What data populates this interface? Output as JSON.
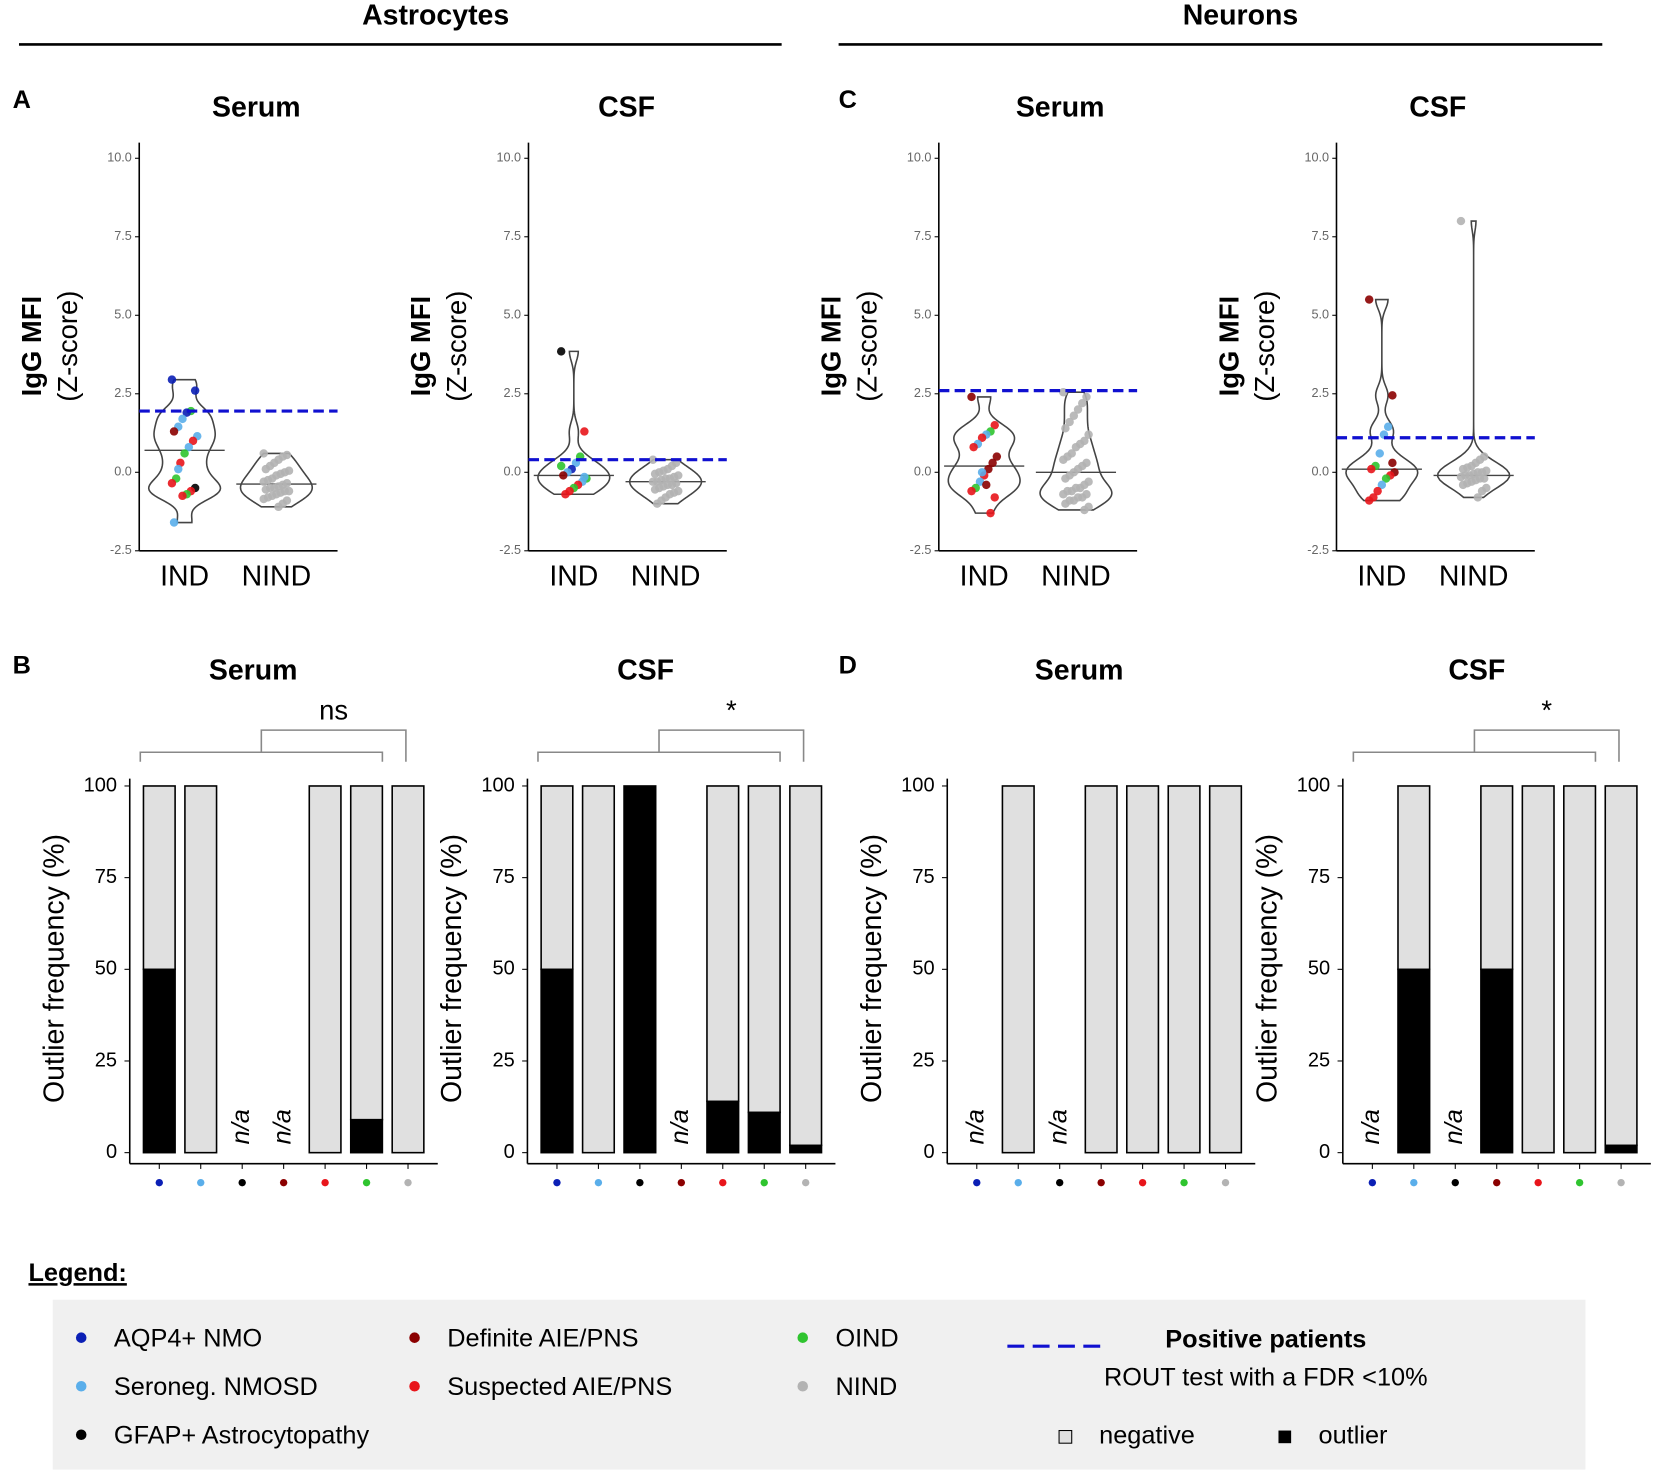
{
  "headers": [
    "Astrocytes",
    "Neurons"
  ],
  "chart_data": [
    {
      "type": "violin",
      "panel": "A",
      "title": "Serum",
      "ylabel": "IgG MFI",
      "ylabel2": "(Z-score)",
      "ylim": [
        -2.5,
        10.5
      ],
      "yticks": [
        {
          "value": -2.5,
          "label": "-2.5"
        },
        {
          "value": 0,
          "label": "0.0"
        },
        {
          "value": 2.5,
          "label": "2.5"
        },
        {
          "value": 5,
          "label": "5.0"
        },
        {
          "value": 7.5,
          "label": "7.5"
        },
        {
          "value": 10,
          "label": "10.0"
        }
      ],
      "threshold": 1.95,
      "threshold_color": "#1010d0",
      "groups": [
        {
          "name": "IND",
          "values": [
            2.95,
            2.6,
            1.95,
            1.9,
            1.7,
            1.45,
            1.3,
            1.15,
            1.0,
            0.8,
            0.6,
            0.3,
            -0.2,
            -0.35,
            -0.5,
            -0.6,
            -0.7,
            -0.75,
            0.1,
            -1.6
          ],
          "colors": [
            "#0b1fb5",
            "#0b1fb5",
            "#2fc42f",
            "#0b1fb5",
            "#5aaeea",
            "#5aaeea",
            "#8b0000",
            "#5aaeea",
            "#e8151b",
            "#5aaeea",
            "#2fc42f",
            "#e8151b",
            "#2fc42f",
            "#e8151b",
            "#000000",
            "#e8151b",
            "#2fc42f",
            "#e8151b",
            "#5aaeea",
            "#5aaeea"
          ]
        },
        {
          "name": "NIND",
          "color": "#b3b3b3",
          "values": [
            0.6,
            0.55,
            0.5,
            0.4,
            0.3,
            0.2,
            0.1,
            0.05,
            0.0,
            -0.05,
            -0.1,
            -0.2,
            -0.25,
            -0.3,
            -0.35,
            -0.4,
            -0.45,
            -0.5,
            -0.5,
            -0.55,
            -0.6,
            -0.6,
            -0.65,
            -0.7,
            -0.75,
            -0.8,
            -0.85,
            -0.9,
            -1.0,
            -1.1
          ]
        }
      ]
    },
    {
      "type": "violin",
      "title": "CSF",
      "ylabel": "IgG MFI",
      "ylabel2": "(Z-score)",
      "ylim": [
        -2.5,
        10.5
      ],
      "yticks": [
        {
          "value": -2.5,
          "label": "-2.5"
        },
        {
          "value": 0,
          "label": "0.0"
        },
        {
          "value": 2.5,
          "label": "2.5"
        },
        {
          "value": 5,
          "label": "5.0"
        },
        {
          "value": 7.5,
          "label": "7.5"
        },
        {
          "value": 10,
          "label": "10.0"
        }
      ],
      "threshold": 0.4,
      "threshold_color": "#1010d0",
      "groups": [
        {
          "name": "IND",
          "values": [
            3.85,
            1.3,
            0.5,
            0.3,
            0.1,
            0.0,
            -0.1,
            -0.2,
            -0.3,
            -0.4,
            -0.5,
            -0.6,
            -0.7,
            0.2,
            -0.15
          ],
          "colors": [
            "#000000",
            "#e8151b",
            "#2fc42f",
            "#5aaeea",
            "#0b1fb5",
            "#5aaeea",
            "#8b0000",
            "#2fc42f",
            "#5aaeea",
            "#e8151b",
            "#2fc42f",
            "#e8151b",
            "#e8151b",
            "#2fc42f",
            "#5aaeea"
          ]
        },
        {
          "name": "NIND",
          "color": "#b3b3b3",
          "values": [
            0.4,
            0.3,
            0.2,
            0.1,
            0.05,
            0,
            -0.05,
            -0.1,
            -0.15,
            -0.2,
            -0.2,
            -0.25,
            -0.3,
            -0.3,
            -0.35,
            -0.4,
            -0.4,
            -0.45,
            -0.5,
            -0.55,
            -0.6,
            -0.65,
            -0.7,
            -0.8,
            -0.9,
            -1.0
          ]
        }
      ]
    },
    {
      "type": "violin",
      "panel": "C",
      "title": "Serum",
      "ylabel": "IgG MFI",
      "ylabel2": "(Z-score)",
      "ylim": [
        -2.5,
        10.5
      ],
      "yticks": [
        {
          "value": -2.5,
          "label": "-2.5"
        },
        {
          "value": 0,
          "label": "0.0"
        },
        {
          "value": 2.5,
          "label": "2.5"
        },
        {
          "value": 5,
          "label": "5.0"
        },
        {
          "value": 7.5,
          "label": "7.5"
        },
        {
          "value": 10,
          "label": "10.0"
        }
      ],
      "threshold": 2.6,
      "threshold_color": "#1010d0",
      "groups": [
        {
          "name": "IND",
          "values": [
            2.4,
            1.5,
            1.3,
            1.2,
            1.1,
            0.9,
            0.8,
            0.5,
            0.3,
            0.1,
            -0.1,
            -0.3,
            -0.5,
            -0.6,
            -0.8,
            -1.3,
            -0.4,
            0.0
          ],
          "colors": [
            "#8b0000",
            "#e8151b",
            "#2fc42f",
            "#5aaeea",
            "#e8151b",
            "#5aaeea",
            "#e8151b",
            "#8b0000",
            "#8b0000",
            "#8b0000",
            "#e8151b",
            "#5aaeea",
            "#2fc42f",
            "#e8151b",
            "#e8151b",
            "#e8151b",
            "#8b0000",
            "#5aaeea"
          ]
        },
        {
          "name": "NIND",
          "color": "#b3b3b3",
          "values": [
            2.55,
            2.4,
            2.2,
            2.0,
            1.8,
            1.6,
            1.4,
            1.2,
            1.0,
            0.9,
            0.8,
            0.6,
            0.5,
            0.4,
            0.3,
            0.2,
            0.1,
            0,
            -0.1,
            -0.2,
            -0.3,
            -0.4,
            -0.5,
            -0.5,
            -0.6,
            -0.6,
            -0.7,
            -0.7,
            -0.8,
            -0.8,
            -0.9,
            -0.9,
            -1.0,
            -1.1,
            -1.2
          ]
        }
      ]
    },
    {
      "type": "violin",
      "title": "CSF",
      "ylabel": "IgG MFI",
      "ylabel2": "(Z-score)",
      "ylim": [
        -2.5,
        10.5
      ],
      "yticks": [
        {
          "value": -2.5,
          "label": "-2.5"
        },
        {
          "value": 0,
          "label": "0.0"
        },
        {
          "value": 2.5,
          "label": "2.5"
        },
        {
          "value": 5,
          "label": "5.0"
        },
        {
          "value": 7.5,
          "label": "7.5"
        },
        {
          "value": 10,
          "label": "10.0"
        }
      ],
      "threshold": 1.1,
      "threshold_color": "#1010d0",
      "groups": [
        {
          "name": "IND",
          "values": [
            5.5,
            2.45,
            1.45,
            1.2,
            0.6,
            0.2,
            0.1,
            0.0,
            -0.1,
            -0.2,
            -0.4,
            -0.6,
            -0.8,
            -0.9,
            0.3
          ],
          "colors": [
            "#8b0000",
            "#8b0000",
            "#5aaeea",
            "#5aaeea",
            "#5aaeea",
            "#2fc42f",
            "#e8151b",
            "#8b0000",
            "#e8151b",
            "#2fc42f",
            "#5aaeea",
            "#e8151b",
            "#e8151b",
            "#e8151b",
            "#8b0000"
          ]
        },
        {
          "name": "NIND",
          "color": "#b3b3b3",
          "values": [
            8.0,
            0.5,
            0.4,
            0.3,
            0.2,
            0.15,
            0.1,
            0.05,
            0,
            0,
            -0.05,
            -0.1,
            -0.1,
            -0.15,
            -0.2,
            -0.2,
            -0.25,
            -0.3,
            -0.35,
            -0.4,
            -0.5,
            -0.6,
            -0.8
          ]
        }
      ]
    },
    {
      "type": "bar",
      "panel": "B",
      "title": "Serum",
      "ylabel": "Outlier frequency (%)",
      "significance": "ns",
      "categories": [
        null,
        null,
        null,
        null,
        null,
        null,
        null
      ],
      "category_colors": [
        "#0b1fb5",
        "#5aaeea",
        "#000000",
        "#8b0000",
        "#e8151b",
        "#2fc42f",
        "#b3b3b3"
      ],
      "ylim": [
        -3,
        102
      ],
      "yticks": [
        0,
        25,
        50,
        75,
        100
      ],
      "series": [
        {
          "color": "#000000",
          "values": [
            50,
            0,
            null,
            null,
            0,
            9,
            0
          ],
          "value_labels": [
            null,
            null,
            "n/a",
            "n/a",
            null,
            null,
            null
          ]
        },
        {
          "color": "#e0e0e0",
          "values": [
            50,
            100,
            null,
            null,
            100,
            91,
            100
          ]
        }
      ]
    },
    {
      "type": "bar",
      "title": "CSF",
      "ylabel": "Outlier frequency (%)",
      "significance": "*",
      "categories": [
        null,
        null,
        null,
        null,
        null,
        null,
        null
      ],
      "category_colors": [
        "#0b1fb5",
        "#5aaeea",
        "#000000",
        "#8b0000",
        "#e8151b",
        "#2fc42f",
        "#b3b3b3"
      ],
      "ylim": [
        -3,
        102
      ],
      "yticks": [
        0,
        25,
        50,
        75,
        100
      ],
      "series": [
        {
          "color": "#000000",
          "values": [
            50,
            0,
            100,
            null,
            14,
            11,
            2
          ],
          "value_labels": [
            null,
            null,
            null,
            "n/a",
            null,
            null,
            null
          ]
        },
        {
          "color": "#e0e0e0",
          "values": [
            50,
            100,
            0,
            null,
            86,
            89,
            98
          ]
        }
      ]
    },
    {
      "type": "bar",
      "panel": "D",
      "title": "Serum",
      "ylabel": "Outlier frequency (%)",
      "categories": [
        null,
        null,
        null,
        null,
        null,
        null,
        null
      ],
      "category_colors": [
        "#0b1fb5",
        "#5aaeea",
        "#000000",
        "#8b0000",
        "#e8151b",
        "#2fc42f",
        "#b3b3b3"
      ],
      "ylim": [
        -3,
        102
      ],
      "yticks": [
        0,
        25,
        50,
        75,
        100
      ],
      "series": [
        {
          "color": "#000000",
          "values": [
            null,
            0,
            null,
            0,
            0,
            0,
            0
          ],
          "value_labels": [
            "n/a",
            null,
            "n/a",
            null,
            null,
            null,
            null
          ]
        },
        {
          "color": "#e0e0e0",
          "values": [
            null,
            100,
            null,
            100,
            100,
            100,
            100
          ]
        }
      ]
    },
    {
      "type": "bar",
      "title": "CSF",
      "ylabel": "Outlier frequency (%)",
      "significance": "*",
      "categories": [
        null,
        null,
        null,
        null,
        null,
        null,
        null
      ],
      "category_colors": [
        "#0b1fb5",
        "#5aaeea",
        "#000000",
        "#8b0000",
        "#e8151b",
        "#2fc42f",
        "#b3b3b3"
      ],
      "ylim": [
        -3,
        102
      ],
      "yticks": [
        0,
        25,
        50,
        75,
        100
      ],
      "series": [
        {
          "color": "#000000",
          "values": [
            null,
            50,
            null,
            50,
            0,
            0,
            2
          ],
          "value_labels": [
            "n/a",
            null,
            "n/a",
            null,
            null,
            null,
            null
          ]
        },
        {
          "color": "#e0e0e0",
          "values": [
            null,
            50,
            null,
            50,
            100,
            100,
            98
          ]
        }
      ]
    }
  ],
  "legend": {
    "title": "Legend:",
    "items": [
      {
        "name": "AQP4+ NMO",
        "color": "#0b1fb5"
      },
      {
        "name": "Seroneg. NMOSD",
        "color": "#5aaeea"
      },
      {
        "name": "GFAP+ Astrocytopathy",
        "color": "#000000"
      },
      {
        "name": "Definite AIE/PNS",
        "color": "#8b0000"
      },
      {
        "name": "Suspected AIE/PNS",
        "color": "#e8151b"
      },
      {
        "name": "OIND",
        "color": "#2fc42f"
      },
      {
        "name": "NIND",
        "color": "#b3b3b3"
      }
    ],
    "threshold_title": "Positive patients",
    "threshold_text": "ROUT test with a FDR <10%",
    "negative": "negative",
    "outlier": "outlier"
  }
}
